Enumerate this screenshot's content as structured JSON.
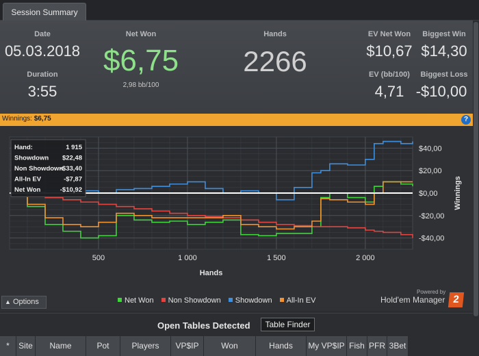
{
  "tab": {
    "label": "Session Summary"
  },
  "summary": {
    "date_label": "Date",
    "date_value": "05.03.2018",
    "duration_label": "Duration",
    "duration_value": "3:55",
    "net_won_label": "Net Won",
    "net_won_value": "$6,75",
    "net_won_bb": "2,98 bb/100",
    "hands_label": "Hands",
    "hands_value": "2266",
    "ev_net_won_label": "EV Net Won",
    "ev_net_won_value": "$10,67",
    "biggest_win_label": "Biggest Win",
    "biggest_win_value": "$14,30",
    "ev_bb_label": "EV (bb/100)",
    "ev_bb_value": "4,71",
    "biggest_loss_label": "Biggest Loss",
    "biggest_loss_value": "-$10,00"
  },
  "winnings_bar": {
    "label": "Winnings:",
    "value": "$6,75",
    "help_icon": "help-icon"
  },
  "tooltip": {
    "rows": [
      {
        "label": "Hand:",
        "value": "1 915"
      },
      {
        "label": "Showdown",
        "value": "$22,48"
      },
      {
        "label": "Non Showdown",
        "value": "-$33,40"
      },
      {
        "label": "All-In EV",
        "value": "-$7,87"
      },
      {
        "label": "Net Won",
        "value": "-$10,92"
      }
    ]
  },
  "chart_data": {
    "type": "line",
    "xlabel": "Hands",
    "ylabel": "Winnings",
    "xlim": [
      0,
      2266
    ],
    "ylim": [
      -50,
      50
    ],
    "x_ticks": [
      500,
      1000,
      1500,
      2000
    ],
    "x_tick_labels": [
      "500",
      "1 000",
      "1 500",
      "2 000"
    ],
    "y_ticks": [
      40,
      20,
      0,
      -20,
      -40
    ],
    "y_tick_labels": [
      "$40,00",
      "$20,00",
      "$0,00",
      "-$20,00",
      "-$40,00"
    ],
    "grid": true,
    "legend_position": "bottom",
    "x": [
      0,
      100,
      200,
      300,
      400,
      500,
      600,
      700,
      800,
      900,
      1000,
      1100,
      1200,
      1300,
      1400,
      1500,
      1600,
      1700,
      1750,
      1800,
      1900,
      2000,
      2050,
      2100,
      2200,
      2266
    ],
    "series": [
      {
        "name": "Net Won",
        "color": "#3fd43a",
        "values": [
          0,
          -12,
          -28,
          -34,
          -40,
          -38,
          -20,
          -24,
          -26,
          -25,
          -28,
          -26,
          -24,
          -37,
          -38,
          -36,
          -36,
          -30,
          -4,
          0,
          -4,
          -8,
          6,
          10,
          8,
          6
        ]
      },
      {
        "name": "Non Showdown",
        "color": "#e2453f",
        "values": [
          0,
          -2,
          -4,
          -6,
          -8,
          -10,
          -12,
          -14,
          -16,
          -18,
          -20,
          -21,
          -22,
          -24,
          -26,
          -28,
          -29,
          -30,
          -30,
          -30,
          -31,
          -33,
          -34,
          -35,
          -37,
          -40
        ]
      },
      {
        "name": "Showdown",
        "color": "#3e8fde",
        "values": [
          0,
          1,
          2,
          2,
          2,
          0,
          3,
          4,
          6,
          8,
          10,
          4,
          0,
          2,
          0,
          -6,
          5,
          18,
          20,
          26,
          25,
          30,
          44,
          46,
          44,
          46
        ]
      },
      {
        "name": "All-In EV",
        "color": "#f09433",
        "values": [
          0,
          -10,
          -22,
          -28,
          -30,
          -26,
          -18,
          -20,
          -22,
          -22,
          -22,
          -22,
          -20,
          -28,
          -30,
          -32,
          -30,
          -25,
          -5,
          -6,
          -8,
          -10,
          0,
          10,
          10,
          10
        ]
      }
    ]
  },
  "legend": [
    {
      "label": "Net Won",
      "color": "#3fd43a"
    },
    {
      "label": "Non Showdown",
      "color": "#e2453f"
    },
    {
      "label": "Showdown",
      "color": "#3e8fde"
    },
    {
      "label": "All-In EV",
      "color": "#f09433"
    }
  ],
  "options_label": "Options",
  "branding": {
    "powered_by": "Powered by",
    "product": "Hold'em Manager",
    "badge": "2"
  },
  "open_tables": {
    "title": "Open Tables Detected",
    "finder_button": "Table Finder",
    "columns": [
      "*",
      "Site",
      "Name",
      "Pot",
      "Players",
      "VP$IP",
      "Won",
      "Hands",
      "My VP$IP",
      "Fish",
      "PFR",
      "3Bet"
    ]
  }
}
